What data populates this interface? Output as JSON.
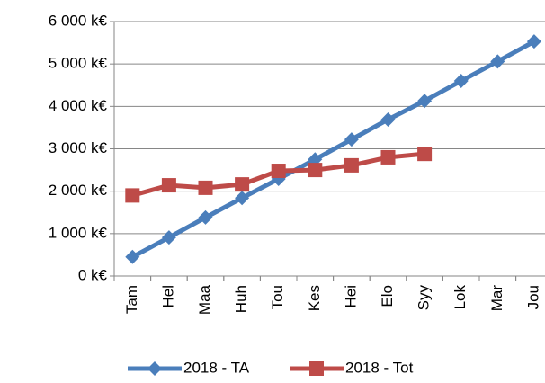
{
  "chart_data": {
    "type": "line",
    "categories": [
      "Tam",
      "Hel",
      "Maa",
      "Huh",
      "Tou",
      "Kes",
      "Hei",
      "Elo",
      "Syy",
      "Lok",
      "Mar",
      "Jou"
    ],
    "series": [
      {
        "name": "2018 - TA",
        "color": "#4a7ebb",
        "marker": "diamond",
        "values": [
          450,
          910,
          1380,
          1840,
          2290,
          2750,
          3220,
          3690,
          4130,
          4600,
          5060,
          5530
        ]
      },
      {
        "name": "2018 - Tot",
        "color": "#be4b48",
        "marker": "square",
        "values": [
          1900,
          2140,
          2080,
          2160,
          2480,
          2500,
          2610,
          2800,
          2880,
          null,
          null,
          null
        ]
      }
    ],
    "ylim": [
      0,
      6000
    ],
    "yticks": [
      {
        "value": 0,
        "label": "0 k€"
      },
      {
        "value": 1000,
        "label": "1 000 k€"
      },
      {
        "value": 2000,
        "label": "2 000 k€"
      },
      {
        "value": 3000,
        "label": "3 000 k€"
      },
      {
        "value": 4000,
        "label": "4 000 k€"
      },
      {
        "value": 5000,
        "label": "5 000 k€"
      },
      {
        "value": 6000,
        "label": "6 000 k€"
      }
    ],
    "grid": true,
    "legend": "bottom"
  }
}
